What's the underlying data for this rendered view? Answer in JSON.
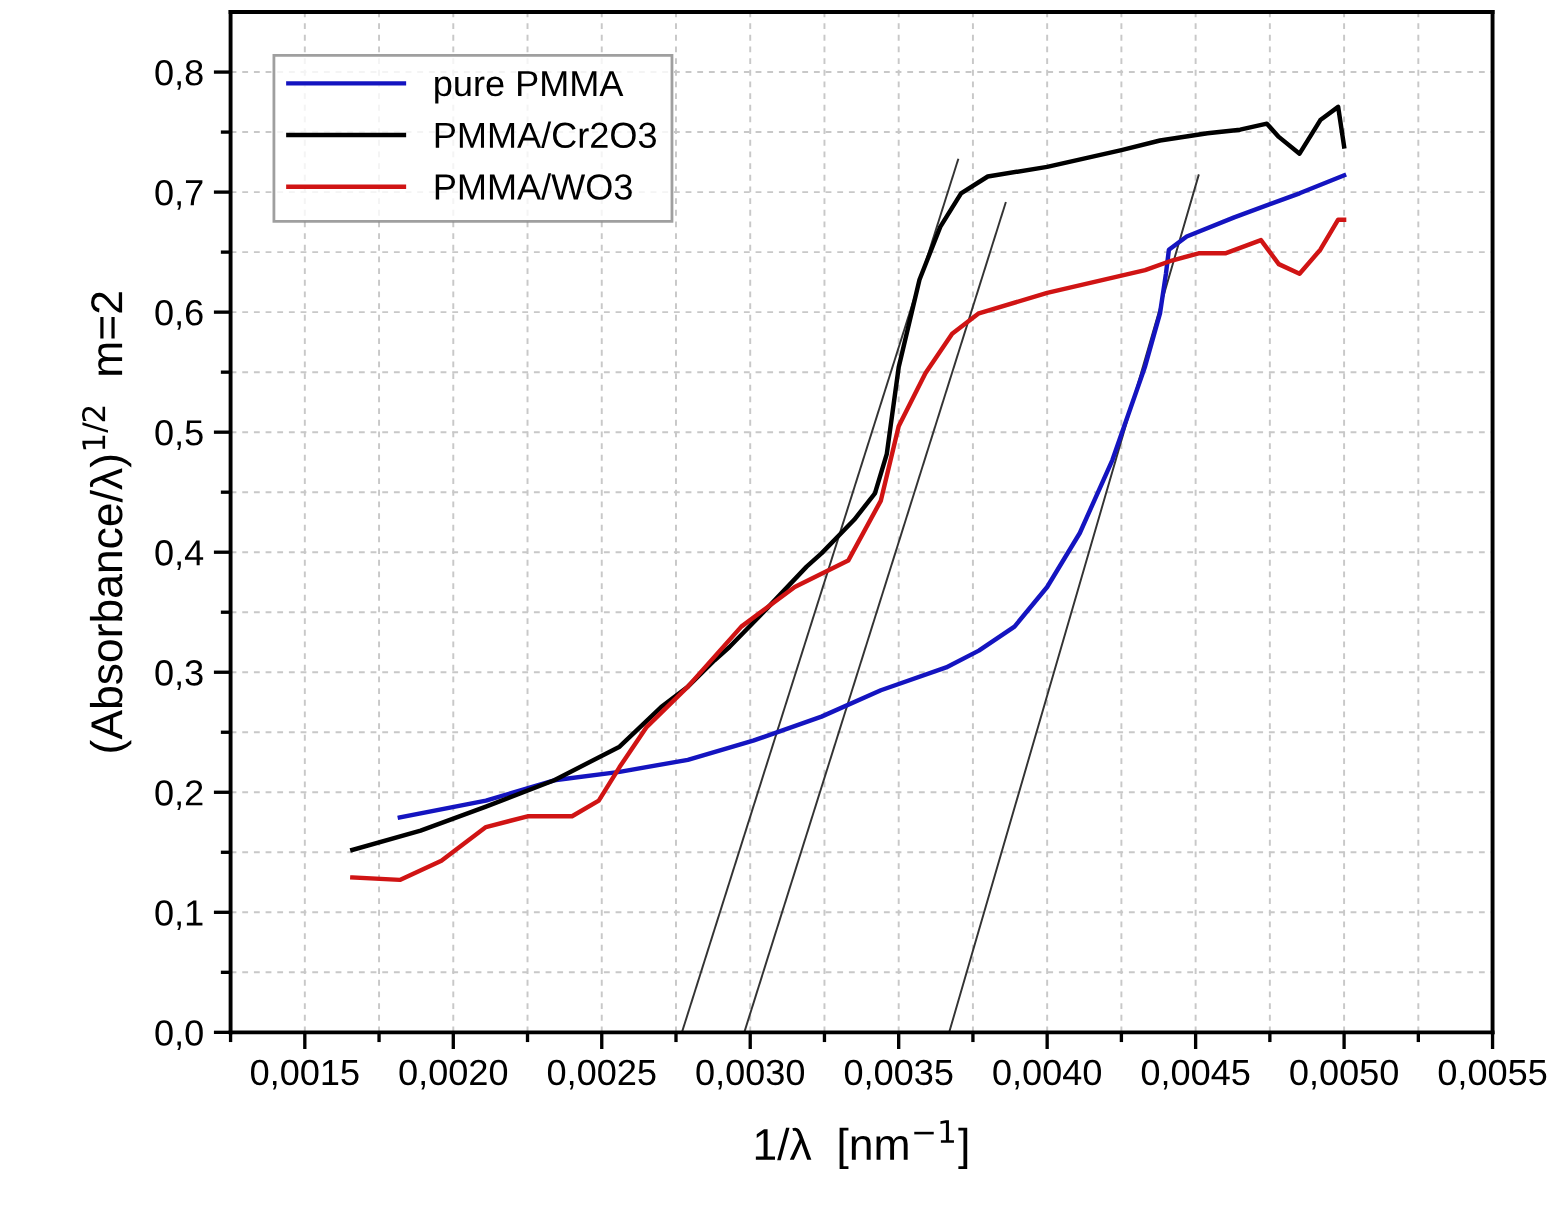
{
  "chart_data": {
    "type": "line",
    "xlabel": "1/λ  [nm$^{−1}$]",
    "ylabel": "(Absorbance/λ)$^{1/2}$  m=2",
    "xlim": [
      0.00125,
      0.0055
    ],
    "ylim": [
      0,
      0.85
    ],
    "xticks": [
      {
        "value": 0.0015,
        "label": "0,0015"
      },
      {
        "value": 0.002,
        "label": "0,0020"
      },
      {
        "value": 0.0025,
        "label": "0,0025"
      },
      {
        "value": 0.003,
        "label": "0,0030"
      },
      {
        "value": 0.0035,
        "label": "0,0035"
      },
      {
        "value": 0.004,
        "label": "0,0040"
      },
      {
        "value": 0.0045,
        "label": "0,0045"
      },
      {
        "value": 0.005,
        "label": "0,0050"
      },
      {
        "value": 0.0055,
        "label": "0,0055"
      },
      {
        "value": 0.00125,
        "label": null
      },
      {
        "value": 0.00175,
        "label": null
      },
      {
        "value": 0.00225,
        "label": null
      },
      {
        "value": 0.00275,
        "label": null
      },
      {
        "value": 0.00325,
        "label": null
      },
      {
        "value": 0.00375,
        "label": null
      },
      {
        "value": 0.00425,
        "label": null
      },
      {
        "value": 0.00475,
        "label": null
      },
      {
        "value": 0.00525,
        "label": null
      }
    ],
    "yticks": [
      {
        "value": 0,
        "label": "0,0"
      },
      {
        "value": 0.1,
        "label": "0,1"
      },
      {
        "value": 0.2,
        "label": "0,2"
      },
      {
        "value": 0.3,
        "label": "0,3"
      },
      {
        "value": 0.4,
        "label": "0,4"
      },
      {
        "value": 0.5,
        "label": "0,5"
      },
      {
        "value": 0.6,
        "label": "0,6"
      },
      {
        "value": 0.7,
        "label": "0,7"
      },
      {
        "value": 0.8,
        "label": "0,8"
      },
      {
        "value": 0.05,
        "label": null
      },
      {
        "value": 0.15,
        "label": null
      },
      {
        "value": 0.25,
        "label": null
      },
      {
        "value": 0.35,
        "label": null
      },
      {
        "value": 0.45,
        "label": null
      },
      {
        "value": 0.55,
        "label": null
      },
      {
        "value": 0.65,
        "label": null
      },
      {
        "value": 0.75,
        "label": null
      }
    ],
    "grid": true,
    "legend": "top left",
    "marker": "none",
    "line_style": "solid",
    "series": [
      {
        "name": "pure PMMA",
        "color": "#1414c0",
        "x": [
          0.00182,
          0.00211,
          0.00234,
          0.00256,
          0.00279,
          0.00301,
          0.00324,
          0.00344,
          0.00366,
          0.00377,
          0.00389,
          0.004,
          0.00411,
          0.00422,
          0.00433,
          0.00438,
          0.0044,
          0.00441,
          0.00447,
          0.00463,
          0.00485,
          0.005
        ],
        "values": [
          0.179,
          0.193,
          0.21,
          0.217,
          0.227,
          0.243,
          0.263,
          0.285,
          0.304,
          0.318,
          0.338,
          0.371,
          0.416,
          0.477,
          0.555,
          0.599,
          0.632,
          0.652,
          0.663,
          0.679,
          0.699,
          0.714
        ]
      },
      {
        "name": "PMMA/Cr2O3",
        "color": "#000000",
        "x": [
          0.00166,
          0.00189,
          0.00211,
          0.00234,
          0.00256,
          0.0027,
          0.00279,
          0.00288,
          0.00293,
          0.00306,
          0.00319,
          0.00324,
          0.00335,
          0.00342,
          0.00346,
          0.0035,
          0.00357,
          0.00364,
          0.00371,
          0.0038,
          0.004,
          0.00425,
          0.00438,
          0.00454,
          0.00465,
          0.00474,
          0.00478,
          0.00485,
          0.00492,
          0.00498,
          0.005
        ],
        "values": [
          0.152,
          0.168,
          0.188,
          0.21,
          0.238,
          0.271,
          0.288,
          0.31,
          0.321,
          0.354,
          0.388,
          0.399,
          0.427,
          0.449,
          0.482,
          0.554,
          0.627,
          0.671,
          0.699,
          0.713,
          0.721,
          0.735,
          0.743,
          0.749,
          0.752,
          0.757,
          0.746,
          0.732,
          0.76,
          0.771,
          0.738
        ]
      },
      {
        "name": "PMMA/WO3",
        "color": "#d01414",
        "x": [
          0.00166,
          0.00182,
          0.00196,
          0.00211,
          0.00225,
          0.0024,
          0.00249,
          0.00256,
          0.00265,
          0.00279,
          0.00297,
          0.00315,
          0.00333,
          0.00344,
          0.0035,
          0.00359,
          0.00368,
          0.00377,
          0.004,
          0.00433,
          0.00442,
          0.00451,
          0.0046,
          0.00472,
          0.00478,
          0.00485,
          0.00492,
          0.00498,
          0.005
        ],
        "values": [
          0.129,
          0.127,
          0.143,
          0.171,
          0.18,
          0.18,
          0.193,
          0.221,
          0.254,
          0.288,
          0.338,
          0.371,
          0.393,
          0.443,
          0.505,
          0.549,
          0.582,
          0.599,
          0.616,
          0.635,
          0.643,
          0.649,
          0.649,
          0.66,
          0.64,
          0.632,
          0.652,
          0.677,
          0.677
        ]
      },
      {
        "color": "#333333",
        "x": [
          0.00277,
          0.0037
        ],
        "values": [
          0,
          0.727
        ]
      },
      {
        "color": "#333333",
        "x": [
          0.00298,
          0.00386
        ],
        "values": [
          0,
          0.691
        ]
      },
      {
        "color": "#333333",
        "x": [
          0.00367,
          0.00451
        ],
        "values": [
          0,
          0.714
        ]
      }
    ]
  }
}
